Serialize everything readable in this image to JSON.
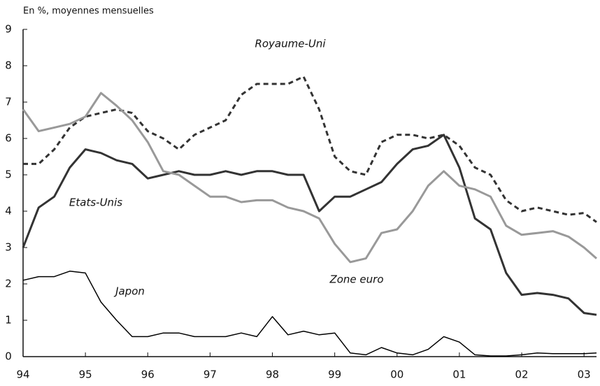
{
  "chart_data": {
    "type": "line",
    "subtitle": "En %, moyennes mensuelles",
    "x": [
      1994,
      1994.25,
      1994.5,
      1994.75,
      1995,
      1995.25,
      1995.5,
      1995.75,
      1996,
      1996.25,
      1996.5,
      1996.75,
      1997,
      1997.25,
      1997.5,
      1997.75,
      1998,
      1998.25,
      1998.5,
      1998.75,
      1999,
      1999.25,
      1999.5,
      1999.75,
      2000,
      2000.25,
      2000.5,
      2000.75,
      2001,
      2001.25,
      2001.5,
      2001.75,
      2002,
      2002.25,
      2002.5,
      2002.75,
      2003,
      2003.2
    ],
    "series": [
      {
        "name": "Royaume-Uni",
        "color": "#333333",
        "style": "dashed",
        "width": 3,
        "values": [
          5.3,
          5.3,
          5.7,
          6.3,
          6.6,
          6.7,
          6.8,
          6.7,
          6.2,
          6.0,
          5.7,
          6.1,
          6.3,
          6.5,
          7.2,
          7.5,
          7.5,
          7.5,
          7.7,
          6.8,
          5.5,
          5.1,
          5.0,
          5.9,
          6.1,
          6.1,
          6.0,
          6.1,
          5.8,
          5.2,
          5.0,
          4.3,
          4.0,
          4.1,
          4.0,
          3.9,
          3.95,
          3.7
        ]
      },
      {
        "name": "Etats-Unis",
        "color": "#333333",
        "style": "solid",
        "width": 3,
        "values": [
          3.0,
          4.1,
          4.4,
          5.2,
          5.7,
          5.6,
          5.4,
          5.3,
          4.9,
          5.0,
          5.1,
          5.0,
          5.0,
          5.1,
          5.0,
          5.1,
          5.1,
          5.0,
          5.0,
          4.0,
          4.4,
          4.4,
          4.6,
          4.8,
          5.3,
          5.7,
          5.8,
          6.1,
          5.2,
          3.8,
          3.5,
          2.3,
          1.7,
          1.75,
          1.7,
          1.6,
          1.2,
          1.15
        ]
      },
      {
        "name": "Zone euro",
        "color": "#999999",
        "style": "solid",
        "width": 3,
        "values": [
          6.8,
          6.2,
          6.3,
          6.4,
          6.6,
          7.25,
          6.9,
          6.5,
          5.9,
          5.1,
          5.0,
          4.7,
          4.4,
          4.4,
          4.25,
          4.3,
          4.3,
          4.1,
          4.0,
          3.8,
          3.1,
          2.6,
          2.7,
          3.4,
          3.5,
          4.0,
          4.7,
          5.1,
          4.7,
          4.6,
          4.4,
          3.6,
          3.35,
          3.4,
          3.45,
          3.3,
          3.0,
          2.7
        ]
      },
      {
        "name": "Japon",
        "color": "#000000",
        "style": "solid",
        "width": 1.5,
        "values": [
          2.1,
          2.2,
          2.2,
          2.35,
          2.3,
          1.5,
          1.0,
          0.55,
          0.55,
          0.65,
          0.65,
          0.55,
          0.55,
          0.55,
          0.65,
          0.55,
          1.1,
          0.6,
          0.7,
          0.6,
          0.65,
          0.1,
          0.05,
          0.25,
          0.1,
          0.05,
          0.2,
          0.55,
          0.4,
          0.05,
          0.02,
          0.02,
          0.05,
          0.1,
          0.08,
          0.08,
          0.08,
          0.1
        ]
      }
    ],
    "xlim": [
      1994,
      2003.2
    ],
    "xticks": [
      {
        "value": 1994,
        "label": "94"
      },
      {
        "value": 1995,
        "label": "95"
      },
      {
        "value": 1996,
        "label": "96"
      },
      {
        "value": 1997,
        "label": "97"
      },
      {
        "value": 1998,
        "label": "98"
      },
      {
        "value": 1999,
        "label": "99"
      },
      {
        "value": 2000,
        "label": "00"
      },
      {
        "value": 2001,
        "label": "01"
      },
      {
        "value": 2002,
        "label": "02"
      },
      {
        "value": 2003,
        "label": "03"
      }
    ],
    "ylim": [
      0,
      9
    ],
    "yticks": [
      0,
      1,
      2,
      3,
      4,
      5,
      6,
      7,
      8,
      9
    ],
    "grid": false
  }
}
